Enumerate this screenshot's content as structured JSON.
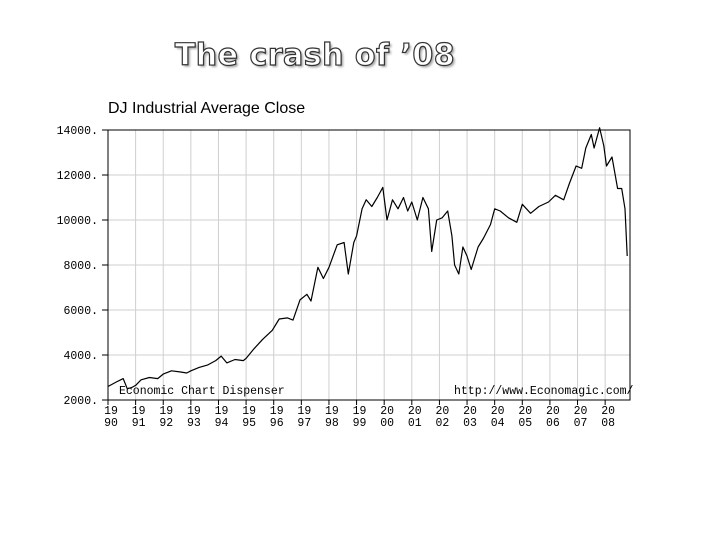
{
  "slide": {
    "title": "The crash of ’08"
  },
  "chart_data": {
    "type": "line",
    "title": "DJ Industrial Average Close",
    "xlabel": "",
    "ylabel": "",
    "xlim": [
      1990,
      2008.9
    ],
    "ylim": [
      2000,
      14000
    ],
    "y_ticks": [
      2000,
      4000,
      6000,
      8000,
      10000,
      12000,
      14000
    ],
    "y_tick_labels": [
      "2000.",
      "4000.",
      "6000.",
      "8000.",
      "10000.",
      "12000.",
      "14000."
    ],
    "x_ticks": [
      1990,
      1991,
      1992,
      1993,
      1994,
      1995,
      1996,
      1997,
      1998,
      1999,
      2000,
      2001,
      2002,
      2003,
      2004,
      2005,
      2006,
      2007,
      2008
    ],
    "x_tick_top": [
      "19",
      "19",
      "19",
      "19",
      "19",
      "19",
      "19",
      "19",
      "19",
      "19",
      "20",
      "20",
      "20",
      "20",
      "20",
      "20",
      "20",
      "20",
      "20"
    ],
    "x_tick_bottom": [
      "90",
      "91",
      "92",
      "93",
      "94",
      "95",
      "96",
      "97",
      "98",
      "99",
      "00",
      "01",
      "02",
      "03",
      "04",
      "05",
      "06",
      "07",
      "08"
    ],
    "grid": true,
    "annotations": {
      "left": "Economic Chart Dispenser",
      "right": "http://www.Economagic.com/"
    },
    "series": [
      {
        "values": [
          [
            1990.0,
            2600
          ],
          [
            1990.3,
            2800
          ],
          [
            1990.55,
            2950
          ],
          [
            1990.7,
            2500
          ],
          [
            1990.85,
            2550
          ],
          [
            1991.0,
            2650
          ],
          [
            1991.2,
            2900
          ],
          [
            1991.5,
            3000
          ],
          [
            1991.8,
            2950
          ],
          [
            1992.0,
            3150
          ],
          [
            1992.3,
            3300
          ],
          [
            1992.6,
            3250
          ],
          [
            1992.85,
            3200
          ],
          [
            1993.0,
            3300
          ],
          [
            1993.3,
            3450
          ],
          [
            1993.6,
            3550
          ],
          [
            1993.9,
            3750
          ],
          [
            1994.1,
            3950
          ],
          [
            1994.3,
            3650
          ],
          [
            1994.6,
            3800
          ],
          [
            1994.9,
            3750
          ],
          [
            1995.0,
            3850
          ],
          [
            1995.3,
            4300
          ],
          [
            1995.6,
            4700
          ],
          [
            1995.95,
            5100
          ],
          [
            1996.2,
            5600
          ],
          [
            1996.5,
            5650
          ],
          [
            1996.7,
            5550
          ],
          [
            1996.95,
            6450
          ],
          [
            1997.2,
            6700
          ],
          [
            1997.35,
            6400
          ],
          [
            1997.6,
            7900
          ],
          [
            1997.8,
            7400
          ],
          [
            1998.0,
            7900
          ],
          [
            1998.3,
            8900
          ],
          [
            1998.55,
            9000
          ],
          [
            1998.7,
            7600
          ],
          [
            1998.9,
            9000
          ],
          [
            1999.0,
            9300
          ],
          [
            1999.2,
            10500
          ],
          [
            1999.35,
            10900
          ],
          [
            1999.55,
            10600
          ],
          [
            1999.75,
            11000
          ],
          [
            1999.95,
            11450
          ],
          [
            2000.1,
            10000
          ],
          [
            2000.3,
            10900
          ],
          [
            2000.5,
            10500
          ],
          [
            2000.7,
            11000
          ],
          [
            2000.85,
            10400
          ],
          [
            2001.0,
            10800
          ],
          [
            2001.2,
            10000
          ],
          [
            2001.4,
            11000
          ],
          [
            2001.6,
            10500
          ],
          [
            2001.72,
            8600
          ],
          [
            2001.9,
            10000
          ],
          [
            2002.1,
            10100
          ],
          [
            2002.3,
            10400
          ],
          [
            2002.45,
            9300
          ],
          [
            2002.55,
            8000
          ],
          [
            2002.7,
            7600
          ],
          [
            2002.85,
            8800
          ],
          [
            2003.0,
            8400
          ],
          [
            2003.15,
            7800
          ],
          [
            2003.4,
            8800
          ],
          [
            2003.6,
            9200
          ],
          [
            2003.85,
            9800
          ],
          [
            2004.0,
            10500
          ],
          [
            2004.2,
            10400
          ],
          [
            2004.5,
            10100
          ],
          [
            2004.8,
            9900
          ],
          [
            2005.0,
            10700
          ],
          [
            2005.3,
            10300
          ],
          [
            2005.6,
            10600
          ],
          [
            2005.95,
            10800
          ],
          [
            2006.2,
            11100
          ],
          [
            2006.5,
            10900
          ],
          [
            2006.7,
            11600
          ],
          [
            2006.95,
            12400
          ],
          [
            2007.15,
            12300
          ],
          [
            2007.3,
            13200
          ],
          [
            2007.5,
            13800
          ],
          [
            2007.6,
            13200
          ],
          [
            2007.8,
            14100
          ],
          [
            2007.95,
            13300
          ],
          [
            2008.05,
            12400
          ],
          [
            2008.25,
            12800
          ],
          [
            2008.45,
            11400
          ],
          [
            2008.6,
            11400
          ],
          [
            2008.72,
            10500
          ],
          [
            2008.8,
            8400
          ]
        ]
      }
    ]
  }
}
